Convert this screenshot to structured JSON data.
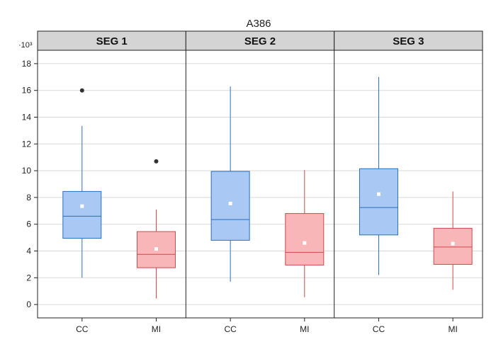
{
  "chart_data": {
    "type": "boxplot",
    "title": "A386",
    "y_multiplier_label": "·10³",
    "y_ticks": [
      0,
      2,
      4,
      6,
      8,
      10,
      12,
      14,
      16,
      18
    ],
    "y_tick_labels": [
      "0",
      "2",
      "4",
      "6",
      "8",
      "10",
      "12",
      "14",
      "16",
      "18"
    ],
    "ylim": [
      -1,
      19
    ],
    "grid": true,
    "colors": {
      "CC": {
        "fill": "#a9c8f3",
        "stroke": "#2a6fbd"
      },
      "MI": {
        "fill": "#f8b6b8",
        "stroke": "#d0474b"
      },
      "mean": "#ffffff",
      "outlier": "#333333",
      "header": "#d4d4d4"
    },
    "panels": [
      {
        "label": "SEG 1",
        "groups": [
          {
            "name": "CC",
            "whisker_low": 2.0,
            "q1": 4.95,
            "median": 6.6,
            "q3": 8.45,
            "whisker_high": 13.35,
            "mean": 7.35,
            "outliers": [
              16.0
            ]
          },
          {
            "name": "MI",
            "whisker_low": 0.45,
            "q1": 2.75,
            "median": 3.75,
            "q3": 5.45,
            "whisker_high": 7.1,
            "mean": 4.15,
            "outliers": [
              10.7
            ]
          }
        ]
      },
      {
        "label": "SEG 2",
        "groups": [
          {
            "name": "CC",
            "whisker_low": 1.7,
            "q1": 4.8,
            "median": 6.35,
            "q3": 9.95,
            "whisker_high": 16.3,
            "mean": 7.55,
            "outliers": []
          },
          {
            "name": "MI",
            "whisker_low": 0.55,
            "q1": 2.95,
            "median": 3.9,
            "q3": 6.8,
            "whisker_high": 10.05,
            "mean": 4.6,
            "outliers": []
          }
        ]
      },
      {
        "label": "SEG 3",
        "groups": [
          {
            "name": "CC",
            "whisker_low": 2.2,
            "q1": 5.2,
            "median": 7.25,
            "q3": 10.15,
            "whisker_high": 17.0,
            "mean": 8.25,
            "outliers": []
          },
          {
            "name": "MI",
            "whisker_low": 1.1,
            "q1": 3.0,
            "median": 4.3,
            "q3": 5.7,
            "whisker_high": 8.45,
            "mean": 4.55,
            "outliers": []
          }
        ]
      }
    ]
  }
}
